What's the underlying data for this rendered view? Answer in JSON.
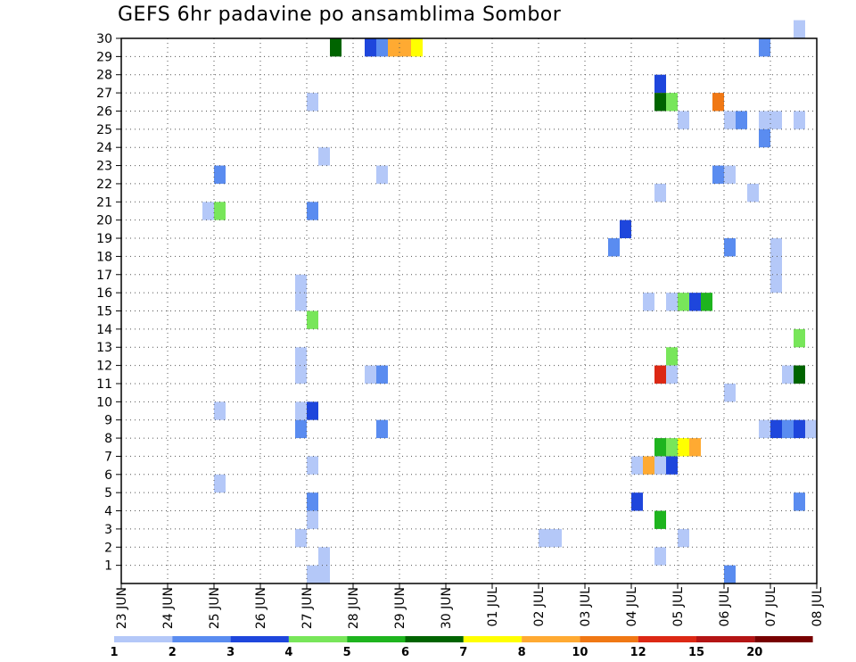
{
  "chart_data": {
    "type": "heatmap",
    "title": "GEFS 6hr padavine po ansamblima Sombor",
    "x_ticks": [
      "23 JUN",
      "24 JUN",
      "25 JUN",
      "26 JUN",
      "27 JUN",
      "28 JUN",
      "29 JUN",
      "30 JUN",
      "01 JUL",
      "02 JUL",
      "03 JUL",
      "04 JUL",
      "05 JUL",
      "06 JUL",
      "07 JUL",
      "08 JUL"
    ],
    "y_ticks": [
      "1",
      "2",
      "3",
      "4",
      "5",
      "6",
      "7",
      "8",
      "9",
      "10",
      "11",
      "12",
      "13",
      "14",
      "15",
      "16",
      "17",
      "18",
      "19",
      "20",
      "21",
      "22",
      "23",
      "24",
      "25",
      "26",
      "27",
      "28",
      "29",
      "30"
    ],
    "x_range_days": [
      0,
      15
    ],
    "y_range": [
      0,
      30
    ],
    "time_step_hours": 6,
    "grid": true,
    "legend": {
      "placement": "bottom",
      "colors": [
        "#b4c8f8",
        "#5a8cf0",
        "#1e46dc",
        "#78e65a",
        "#1eb41e",
        "#006400",
        "#ffff00",
        "#ffaa32",
        "#f07814",
        "#dc2814",
        "#b41414",
        "#780000"
      ],
      "labels": [
        "1",
        "2",
        "3",
        "4",
        "5",
        "6",
        "7",
        "8",
        "10",
        "12",
        "15",
        "20"
      ]
    },
    "cells": [
      {
        "member": 30,
        "x": 14.5,
        "v": 1
      },
      {
        "member": 29,
        "x": 4.5,
        "v": 6
      },
      {
        "member": 29,
        "x": 5.25,
        "v": 3
      },
      {
        "member": 29,
        "x": 5.5,
        "v": 2
      },
      {
        "member": 29,
        "x": 5.75,
        "v": 8
      },
      {
        "member": 29,
        "x": 6.0,
        "v": 8
      },
      {
        "member": 29,
        "x": 6.25,
        "v": 7
      },
      {
        "member": 29,
        "x": 13.75,
        "v": 2
      },
      {
        "member": 27,
        "x": 11.5,
        "v": 3
      },
      {
        "member": 26,
        "x": 4.0,
        "v": 1
      },
      {
        "member": 26,
        "x": 11.5,
        "v": 6
      },
      {
        "member": 26,
        "x": 11.75,
        "v": 4
      },
      {
        "member": 26,
        "x": 12.75,
        "v": 10
      },
      {
        "member": 25,
        "x": 12.0,
        "v": 1
      },
      {
        "member": 25,
        "x": 13.0,
        "v": 1
      },
      {
        "member": 25,
        "x": 13.25,
        "v": 2
      },
      {
        "member": 25,
        "x": 13.75,
        "v": 1
      },
      {
        "member": 25,
        "x": 14.0,
        "v": 1
      },
      {
        "member": 25,
        "x": 14.5,
        "v": 1
      },
      {
        "member": 24,
        "x": 13.75,
        "v": 2
      },
      {
        "member": 23,
        "x": 4.25,
        "v": 1
      },
      {
        "member": 22,
        "x": 2.0,
        "v": 2
      },
      {
        "member": 22,
        "x": 5.5,
        "v": 1
      },
      {
        "member": 22,
        "x": 12.75,
        "v": 2
      },
      {
        "member": 22,
        "x": 13.0,
        "v": 1
      },
      {
        "member": 21,
        "x": 11.5,
        "v": 1
      },
      {
        "member": 21,
        "x": 13.5,
        "v": 1
      },
      {
        "member": 20,
        "x": 1.75,
        "v": 1
      },
      {
        "member": 20,
        "x": 2.0,
        "v": 4
      },
      {
        "member": 20,
        "x": 4.0,
        "v": 2
      },
      {
        "member": 19,
        "x": 10.75,
        "v": 3
      },
      {
        "member": 18,
        "x": 10.5,
        "v": 2
      },
      {
        "member": 18,
        "x": 13.0,
        "v": 2
      },
      {
        "member": 18,
        "x": 14.0,
        "v": 1
      },
      {
        "member": 17,
        "x": 14.0,
        "v": 1
      },
      {
        "member": 16,
        "x": 3.75,
        "v": 1
      },
      {
        "member": 16,
        "x": 14.0,
        "v": 1
      },
      {
        "member": 15,
        "x": 3.75,
        "v": 1
      },
      {
        "member": 15,
        "x": 11.25,
        "v": 1
      },
      {
        "member": 15,
        "x": 11.75,
        "v": 1
      },
      {
        "member": 15,
        "x": 12.0,
        "v": 4
      },
      {
        "member": 15,
        "x": 12.25,
        "v": 3
      },
      {
        "member": 15,
        "x": 12.5,
        "v": 5
      },
      {
        "member": 14,
        "x": 4.0,
        "v": 4
      },
      {
        "member": 13,
        "x": 14.5,
        "v": 4
      },
      {
        "member": 12,
        "x": 3.75,
        "v": 1
      },
      {
        "member": 12,
        "x": 11.75,
        "v": 4
      },
      {
        "member": 11,
        "x": 3.75,
        "v": 1
      },
      {
        "member": 11,
        "x": 5.25,
        "v": 1
      },
      {
        "member": 11,
        "x": 5.5,
        "v": 2
      },
      {
        "member": 11,
        "x": 11.5,
        "v": 12
      },
      {
        "member": 11,
        "x": 11.75,
        "v": 1
      },
      {
        "member": 11,
        "x": 14.25,
        "v": 1
      },
      {
        "member": 11,
        "x": 14.5,
        "v": 6
      },
      {
        "member": 10,
        "x": 13.0,
        "v": 1
      },
      {
        "member": 9,
        "x": 2.0,
        "v": 1
      },
      {
        "member": 9,
        "x": 3.75,
        "v": 1
      },
      {
        "member": 9,
        "x": 4.0,
        "v": 3
      },
      {
        "member": 8,
        "x": 3.75,
        "v": 2
      },
      {
        "member": 8,
        "x": 5.5,
        "v": 2
      },
      {
        "member": 8,
        "x": 13.75,
        "v": 1
      },
      {
        "member": 8,
        "x": 14.0,
        "v": 3
      },
      {
        "member": 8,
        "x": 14.25,
        "v": 2
      },
      {
        "member": 8,
        "x": 14.5,
        "v": 3
      },
      {
        "member": 8,
        "x": 14.75,
        "v": 1
      },
      {
        "member": 7,
        "x": 11.5,
        "v": 5
      },
      {
        "member": 7,
        "x": 11.75,
        "v": 4
      },
      {
        "member": 7,
        "x": 12.0,
        "v": 7
      },
      {
        "member": 7,
        "x": 12.25,
        "v": 8
      },
      {
        "member": 6,
        "x": 4.0,
        "v": 1
      },
      {
        "member": 6,
        "x": 11.0,
        "v": 1
      },
      {
        "member": 6,
        "x": 11.25,
        "v": 8
      },
      {
        "member": 6,
        "x": 11.5,
        "v": 1
      },
      {
        "member": 6,
        "x": 11.75,
        "v": 3
      },
      {
        "member": 5,
        "x": 2.0,
        "v": 1
      },
      {
        "member": 4,
        "x": 4.0,
        "v": 2
      },
      {
        "member": 4,
        "x": 11.0,
        "v": 3
      },
      {
        "member": 4,
        "x": 14.5,
        "v": 2
      },
      {
        "member": 3,
        "x": 4.0,
        "v": 1
      },
      {
        "member": 3,
        "x": 11.5,
        "v": 5
      },
      {
        "member": 2,
        "x": 3.75,
        "v": 1
      },
      {
        "member": 2,
        "x": 9.0,
        "v": 1
      },
      {
        "member": 2,
        "x": 9.25,
        "v": 1
      },
      {
        "member": 2,
        "x": 12.0,
        "v": 1
      },
      {
        "member": 1,
        "x": 4.25,
        "v": 1
      },
      {
        "member": 1,
        "x": 11.5,
        "v": 1
      },
      {
        "member": 0,
        "x": 4.0,
        "v": 1
      },
      {
        "member": 0,
        "x": 4.25,
        "v": 1
      },
      {
        "member": 0,
        "x": 13.0,
        "v": 2
      }
    ]
  }
}
